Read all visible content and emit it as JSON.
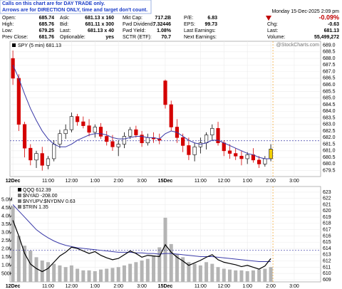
{
  "info": {
    "notice": [
      "Calls on this chart are for DAY TRADE only.",
      "Arrows are for DIRECTION ONLY, time and target don't count."
    ],
    "quote": [
      [
        [
          "Open:",
          "685.74"
        ],
        [
          "High:",
          "685.76"
        ],
        [
          "Low:",
          "679.25"
        ],
        [
          "Prev Close:",
          "681.76"
        ]
      ],
      [
        [
          "Ask:",
          "681.13 x 160"
        ],
        [
          "Bid:",
          "681.11 x 300"
        ],
        [
          "Last:",
          "681.13 x 40"
        ],
        [
          "Optionable:",
          "yes"
        ]
      ],
      [
        [
          "Mkt Cap:",
          "717.2B"
        ],
        [
          "Fwd Dividend:",
          "7.32446"
        ],
        [
          "Fwd Yield:",
          "1.08%"
        ],
        [
          "SCTR (ETF):",
          "70.7"
        ]
      ],
      [
        [
          "P/E:",
          "6.83"
        ],
        [
          "EPS:",
          "99.73"
        ],
        [
          "Last Earnings:"
        ],
        [
          "Next Earnings:"
        ]
      ]
    ],
    "date": "Monday 15-Dec-2025  2:09 pm",
    "change_pct": "-0.09%",
    "summary": [
      [
        "Chg:",
        "-0.63"
      ],
      [
        "Last:",
        "681.13"
      ],
      [
        "Volume:",
        "55,499,272"
      ]
    ],
    "watermark": "@StockCharts.com"
  },
  "chart_data": [
    {
      "type": "candlestick",
      "name": "SPY (5 min) 681.13",
      "up_color": "#000000",
      "down_color": "#d40000",
      "last_color": "#f2d000",
      "x": [
        0,
        1,
        2,
        3,
        4,
        5,
        6,
        7,
        8,
        9,
        10,
        11,
        12,
        13,
        14,
        15,
        16,
        17,
        18,
        19,
        20,
        21,
        22,
        23,
        24,
        25,
        26,
        27,
        28,
        29,
        30,
        31,
        32,
        33,
        34,
        35,
        36,
        37,
        38,
        39,
        40,
        41,
        42,
        43,
        44
      ],
      "open": [
        688.0,
        686.5,
        683.0,
        681.2,
        680.3,
        680.8,
        679.9,
        680.4,
        681.5,
        682.3,
        682.6,
        683.6,
        683.2,
        682.9,
        682.4,
        682.8,
        682.1,
        681.7,
        681.3,
        681.5,
        682.1,
        682.6,
        682.2,
        681.6,
        682.0,
        681.9,
        686.3,
        684.5,
        682.8,
        682.0,
        681.4,
        680.7,
        681.3,
        681.6,
        682.2,
        682.7,
        681.6,
        681.0,
        680.8,
        680.6,
        680.4,
        680.7,
        680.3,
        680.0,
        680.4
      ],
      "high": [
        688.6,
        686.8,
        683.2,
        681.5,
        681.0,
        681.3,
        680.6,
        681.8,
        682.6,
        683.0,
        683.9,
        683.8,
        683.6,
        683.4,
        683.0,
        683.1,
        682.5,
        682.2,
        681.8,
        682.4,
        682.8,
        682.9,
        682.5,
        682.3,
        682.4,
        682.3,
        686.4,
        684.8,
        683.4,
        682.3,
        682.0,
        681.6,
        682.0,
        682.4,
        683.0,
        683.2,
        681.8,
        681.5,
        681.2,
        681.0,
        680.9,
        681.2,
        680.6,
        680.6,
        681.5
      ],
      "low": [
        686.0,
        682.5,
        680.5,
        679.9,
        679.7,
        679.5,
        679.6,
        680.2,
        681.2,
        681.9,
        682.4,
        682.9,
        682.7,
        682.1,
        682.0,
        681.9,
        681.4,
        681.0,
        680.6,
        681.2,
        681.9,
        682.0,
        681.3,
        681.4,
        681.6,
        681.5,
        684.2,
        682.5,
        681.6,
        680.9,
        680.3,
        680.2,
        680.8,
        681.1,
        681.8,
        681.4,
        680.6,
        680.4,
        680.3,
        679.9,
        680.0,
        680.1,
        679.7,
        679.8,
        680.2
      ],
      "close": [
        686.5,
        683.0,
        681.2,
        680.3,
        680.8,
        679.9,
        680.4,
        681.5,
        682.3,
        682.6,
        683.6,
        683.2,
        682.9,
        682.4,
        682.8,
        682.1,
        681.7,
        681.3,
        681.5,
        682.1,
        682.6,
        682.2,
        681.6,
        682.0,
        681.9,
        681.8,
        684.5,
        682.8,
        682.0,
        681.4,
        680.7,
        681.3,
        681.6,
        682.2,
        682.7,
        681.6,
        681.0,
        680.8,
        680.6,
        680.4,
        680.7,
        680.3,
        680.0,
        680.4,
        681.13
      ],
      "ma": {
        "color": "#3a3aa8",
        "values": [
          687.5,
          686.5,
          685.3,
          684.2,
          683.3,
          682.5,
          681.9,
          681.5,
          681.3,
          681.3,
          681.5,
          681.8,
          682.0,
          682.2,
          682.3,
          682.3,
          682.2,
          682.0,
          681.9,
          681.9,
          682.0,
          682.1,
          682.1,
          682.0,
          682.0,
          681.9,
          682.3,
          682.5,
          682.4,
          682.1,
          681.8,
          681.6,
          681.5,
          681.6,
          681.8,
          681.8,
          681.6,
          681.4,
          681.2,
          681.0,
          680.8,
          680.7,
          680.5,
          680.4,
          680.4
        ]
      },
      "reference_line": 681.76,
      "xlim": [
        -0.5,
        52.5
      ],
      "xticks": [
        {
          "value": 0,
          "label": "12Dec"
        },
        {
          "value": 6,
          "label": "11:00"
        },
        {
          "value": 10,
          "label": "12:00"
        },
        {
          "value": 14,
          "label": "1:00"
        },
        {
          "value": 18,
          "label": "2:00"
        },
        {
          "value": 22,
          "label": "3:00"
        },
        {
          "value": 26,
          "label": "15Dec"
        },
        {
          "value": 32,
          "label": "11:00"
        },
        {
          "value": 36,
          "label": "12:00"
        },
        {
          "value": 40,
          "label": "1:00"
        },
        {
          "value": 44,
          "label": "2:00"
        },
        {
          "value": 48,
          "label": "3:00"
        }
      ],
      "ylim": [
        679.05,
        689.3
      ],
      "yticks": [
        679.5,
        {
          "value": 680,
          "label": "680.0"
        },
        680.5,
        {
          "value": 681,
          "label": "681.0"
        },
        681.5,
        {
          "value": 682,
          "label": "682.0"
        },
        682.5,
        {
          "value": 683,
          "label": "683.0"
        },
        683.5,
        {
          "value": 684,
          "label": "684.0"
        },
        684.5,
        {
          "value": 685,
          "label": "685.0"
        },
        685.5,
        {
          "value": 686,
          "label": "686.0"
        },
        686.5,
        {
          "value": 687,
          "label": "687.0"
        },
        687.5,
        {
          "value": 688,
          "label": "688.0"
        },
        688.5,
        {
          "value": 689,
          "label": "689.0"
        }
      ],
      "grid": true
    },
    {
      "type": "line",
      "series": [
        {
          "name": "QQQ 612.39",
          "color": "#000000",
          "axis": "y2",
          "values": [
            618.5,
            616.0,
            613.2,
            611.5,
            610.8,
            610.3,
            610.8,
            611.8,
            612.8,
            613.4,
            614.2,
            614.0,
            613.6,
            613.2,
            613.5,
            612.9,
            612.5,
            612.2,
            612.4,
            613.0,
            613.6,
            613.2,
            612.6,
            612.9,
            612.8,
            612.7,
            614.6,
            613.4,
            612.6,
            612.0,
            611.3,
            611.7,
            612.1,
            612.6,
            613.0,
            612.2,
            611.8,
            611.6,
            611.4,
            611.1,
            611.3,
            611.0,
            610.7,
            611.2,
            612.39
          ]
        }
      ],
      "legend_extra": [
        "$NYAD -208.00",
        "$NYUPV:$NYDNV 0.63",
        "$TRIN 1.35"
      ],
      "x": [
        0,
        1,
        2,
        3,
        4,
        5,
        6,
        7,
        8,
        9,
        10,
        11,
        12,
        13,
        14,
        15,
        16,
        17,
        18,
        19,
        20,
        21,
        22,
        23,
        24,
        25,
        26,
        27,
        28,
        29,
        30,
        31,
        32,
        33,
        34,
        35,
        36,
        37,
        38,
        39,
        40,
        41,
        42,
        43,
        44
      ],
      "volume": {
        "color": "#b4b4b4",
        "values": [
          4600000,
          2800000,
          2200000,
          1900000,
          1500000,
          1300000,
          1200000,
          1100000,
          1000000,
          900000,
          1000000,
          800000,
          700000,
          700000,
          650000,
          750000,
          800000,
          850000,
          900000,
          1000000,
          1100000,
          1200000,
          1300000,
          1400000,
          1600000,
          2100000,
          3900000,
          2300000,
          1700000,
          1500000,
          1200000,
          1100000,
          1000000,
          1200000,
          1100000,
          900000,
          800000,
          750000,
          700000,
          700000,
          650000,
          700000,
          750000,
          800000,
          900000
        ]
      },
      "ma": {
        "color": "#3a3aa8",
        "values": [
          621,
          620,
          619,
          618,
          617,
          616.3,
          615.7,
          615.2,
          614.8,
          614.5,
          614.3,
          614.1,
          614.0,
          613.9,
          613.8,
          613.7,
          613.6,
          613.5,
          613.4,
          613.4,
          613.4,
          613.3,
          613.3,
          613.2,
          613.2,
          613.1,
          613.2,
          613.2,
          613.1,
          613.0,
          612.9,
          612.8,
          612.7,
          612.7,
          612.7,
          612.6,
          612.5,
          612.4,
          612.3,
          612.2,
          612.1,
          612.0,
          611.9,
          611.9,
          611.9
        ]
      },
      "reference_line": 613.7,
      "xlim": [
        -0.5,
        52.5
      ],
      "xticks": [
        {
          "value": 0,
          "label": "12Dec"
        },
        {
          "value": 6,
          "label": "11:00"
        },
        {
          "value": 10,
          "label": "12:00"
        },
        {
          "value": 14,
          "label": "1:00"
        },
        {
          "value": 18,
          "label": "2:00"
        },
        {
          "value": 22,
          "label": "3:00"
        },
        {
          "value": 26,
          "label": "15Dec"
        },
        {
          "value": 32,
          "label": "11:00"
        },
        {
          "value": 36,
          "label": "12:00"
        },
        {
          "value": 40,
          "label": "1:00"
        },
        {
          "value": 44,
          "label": "2:00"
        },
        {
          "value": 48,
          "label": "3:00"
        }
      ],
      "ylim": [
        0,
        5800000
      ],
      "yticks": [
        {
          "value": 500000,
          "label": "500K"
        },
        {
          "value": 1000000,
          "label": "1.0M"
        },
        {
          "value": 1500000,
          "label": "1.5M"
        },
        {
          "value": 2000000,
          "label": "2.0M"
        },
        {
          "value": 2500000,
          "label": "2.5M"
        },
        {
          "value": 3000000,
          "label": "3.0M"
        },
        {
          "value": 3500000,
          "label": "3.5M"
        },
        {
          "value": 4000000,
          "label": "4.0M"
        },
        {
          "value": 4500000,
          "label": "4.5M"
        },
        {
          "value": 5000000,
          "label": "5.0M"
        }
      ],
      "y2lim": [
        608.66,
        623.9
      ],
      "y2ticks": [
        609,
        610,
        611,
        612,
        613,
        614,
        615,
        616,
        617,
        618,
        619,
        620,
        621,
        622,
        623
      ],
      "grid": true
    }
  ]
}
